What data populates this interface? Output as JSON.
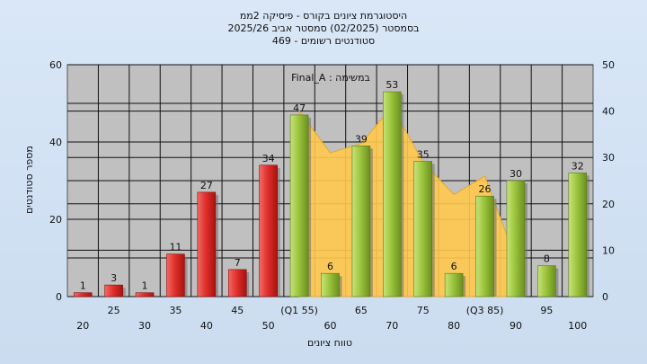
{
  "chart_data": {
    "type": "bar",
    "title_lines": [
      "היסטוגרמת ציונים בקורס - פיסיקה 2ממ",
      "בסמסטר  (02/2025)  סמסטר אביב 2025/26",
      "469 - סטודנטים רשומים"
    ],
    "xlabel": "טווח ציונים",
    "ylabel": "מספר סטודנטים",
    "annotation": "Final_A : במשימה",
    "ylim_left": [
      0,
      60
    ],
    "ylim_right": [
      0,
      50
    ],
    "yticks_left": [
      "0",
      "20",
      "40",
      "60"
    ],
    "yticks_right": [
      "0",
      "10",
      "20",
      "30",
      "40",
      "50"
    ],
    "grid": true,
    "categories": [
      "20",
      "25",
      "30",
      "35",
      "40",
      "45",
      "50",
      "(Q1 55)",
      "60",
      "65",
      "70",
      "75",
      "80",
      "(Q3 85)",
      "90",
      "95",
      "100"
    ],
    "values": [
      1,
      3,
      1,
      11,
      27,
      7,
      34,
      47,
      6,
      39,
      53,
      35,
      6,
      26,
      30,
      8,
      32
    ],
    "value_labels": [
      "1",
      "3",
      "1",
      "11",
      "27",
      "7",
      "34",
      "47",
      "6",
      "39",
      "53",
      "35",
      "6",
      "26",
      "30",
      "8",
      "32"
    ],
    "bar_colors": [
      "#e0302c",
      "#e0302c",
      "#e0302c",
      "#e0302c",
      "#e0302c",
      "#e0302c",
      "#e0302c",
      "#9cc53d",
      "#9cc53d",
      "#9cc53d",
      "#9cc53d",
      "#9cc53d",
      "#9cc53d",
      "#9cc53d",
      "#9cc53d",
      "#9cc53d",
      "#9cc53d"
    ],
    "area_values_right": [
      null,
      null,
      null,
      null,
      null,
      null,
      null,
      40,
      31,
      33,
      41,
      29,
      22,
      26,
      8,
      null,
      null
    ],
    "area_color": "#ffc94d",
    "plot_bg": "#c0c0c0"
  }
}
